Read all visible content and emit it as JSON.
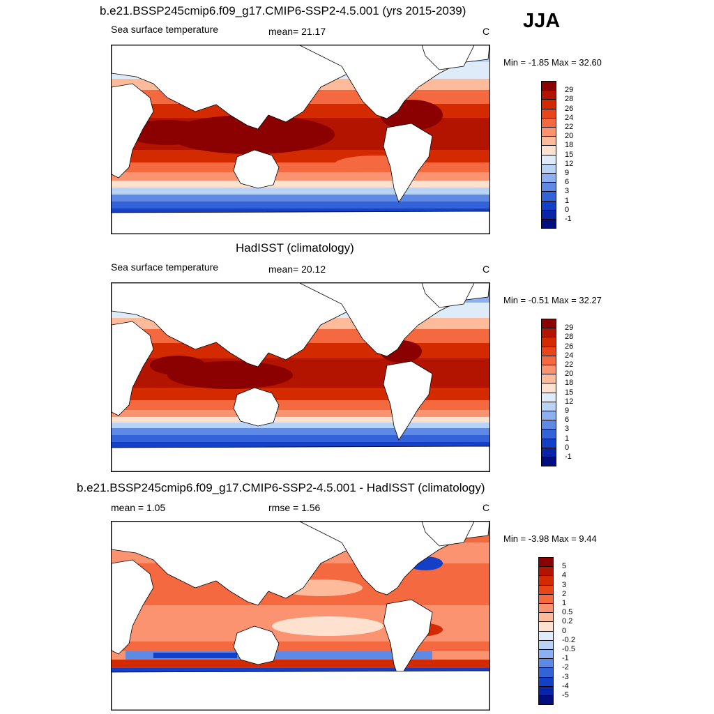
{
  "season": "JJA",
  "panels": [
    {
      "title": "b.e21.BSSP245cmip6.f09_g17.CMIP6-SSP2-4.5.001 (yrs 2015-2039)",
      "left_label": "Sea surface temperature",
      "center_label": "mean=  21.17",
      "units": "C",
      "minmax": "Min =  -1.85 Max =  32.60",
      "colorbar": {
        "labels": [
          "29",
          "28",
          "26",
          "24",
          "22",
          "20",
          "18",
          "15",
          "12",
          "9",
          "6",
          "3",
          "1",
          "0",
          "-1"
        ],
        "colors": [
          "#8b0000",
          "#b31400",
          "#d42a00",
          "#e8461a",
          "#f4693f",
          "#fb9370",
          "#fdbb9c",
          "#fee2cf",
          "#deecfa",
          "#b9d3f6",
          "#8db0f0",
          "#5e8ae6",
          "#3463d9",
          "#1440c8",
          "#0a24a8",
          "#020e80"
        ]
      }
    },
    {
      "title": "HadISST (climatology)",
      "left_label": "Sea surface temperature",
      "center_label": "mean=  20.12",
      "units": "C",
      "minmax": "Min =  -0.51 Max =  32.27",
      "colorbar": {
        "labels": [
          "29",
          "28",
          "26",
          "24",
          "22",
          "20",
          "18",
          "15",
          "12",
          "9",
          "6",
          "3",
          "1",
          "0",
          "-1"
        ],
        "colors": [
          "#8b0000",
          "#b31400",
          "#d42a00",
          "#e8461a",
          "#f4693f",
          "#fb9370",
          "#fdbb9c",
          "#fee2cf",
          "#deecfa",
          "#b9d3f6",
          "#8db0f0",
          "#5e8ae6",
          "#3463d9",
          "#1440c8",
          "#0a24a8",
          "#020e80"
        ]
      }
    },
    {
      "title": "b.e21.BSSP245cmip6.f09_g17.CMIP6-SSP2-4.5.001 - HadISST (climatology)",
      "left_label": "mean =   1.05",
      "center_label": "rmse =   1.56",
      "units": "C",
      "minmax": "Min =  -3.98 Max =   9.44",
      "colorbar": {
        "labels": [
          "5",
          "4",
          "3",
          "2",
          "1",
          "0.5",
          "0.2",
          "0",
          "-0.2",
          "-0.5",
          "-1",
          "-2",
          "-3",
          "-4",
          "-5"
        ],
        "colors": [
          "#8b0000",
          "#b31400",
          "#d42a00",
          "#e8461a",
          "#f4693f",
          "#fb9370",
          "#fdbb9c",
          "#fee2cf",
          "#deecfa",
          "#b9d3f6",
          "#8db0f0",
          "#5e8ae6",
          "#3463d9",
          "#1440c8",
          "#0a24a8",
          "#020e80"
        ]
      }
    }
  ]
}
